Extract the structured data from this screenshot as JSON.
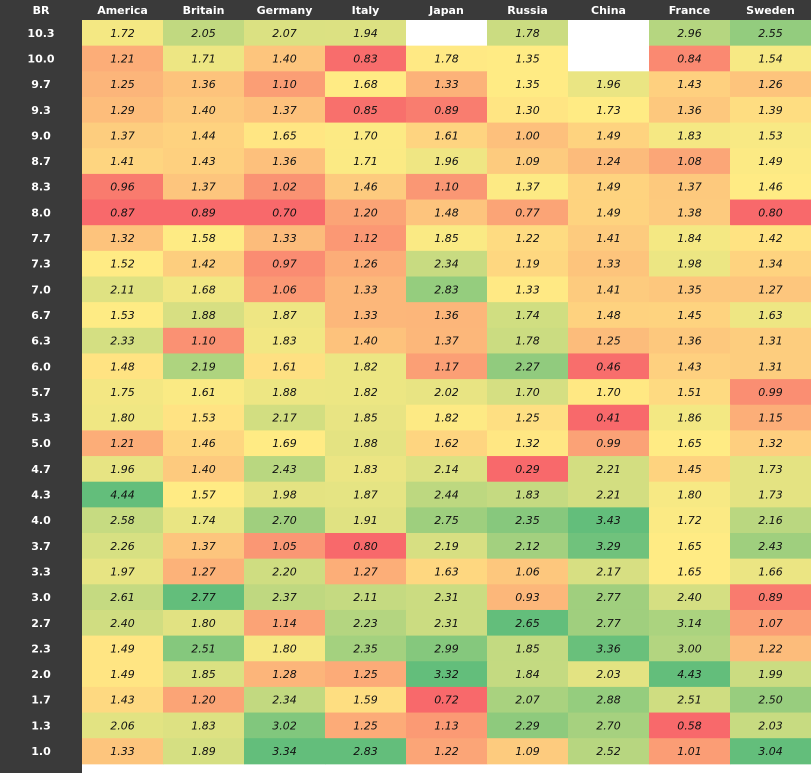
{
  "chart_data": {
    "type": "heatmap",
    "row_header": "BR",
    "columns": [
      "America",
      "Britain",
      "Germany",
      "Italy",
      "Japan",
      "Russia",
      "China",
      "France",
      "Sweden"
    ],
    "rows": [
      "10.3",
      "10.0",
      "9.7",
      "9.3",
      "9.0",
      "8.7",
      "8.3",
      "8.0",
      "7.7",
      "7.3",
      "7.0",
      "6.7",
      "6.3",
      "6.0",
      "5.7",
      "5.3",
      "5.0",
      "4.7",
      "4.3",
      "4.0",
      "3.7",
      "3.3",
      "3.0",
      "2.7",
      "2.3",
      "2.0",
      "1.7",
      "1.3",
      "1.0"
    ],
    "values": [
      [
        "1.72",
        "2.05",
        "2.07",
        "1.94",
        null,
        "1.78",
        null,
        "2.96",
        "2.55"
      ],
      [
        "1.21",
        "1.71",
        "1.40",
        "0.83",
        "1.78",
        "1.35",
        null,
        "0.84",
        "1.54"
      ],
      [
        "1.25",
        "1.36",
        "1.10",
        "1.68",
        "1.33",
        "1.35",
        "1.96",
        "1.43",
        "1.26"
      ],
      [
        "1.29",
        "1.40",
        "1.37",
        "0.85",
        "0.89",
        "1.30",
        "1.73",
        "1.36",
        "1.39"
      ],
      [
        "1.37",
        "1.44",
        "1.65",
        "1.70",
        "1.61",
        "1.00",
        "1.49",
        "1.83",
        "1.53"
      ],
      [
        "1.41",
        "1.43",
        "1.36",
        "1.71",
        "1.96",
        "1.09",
        "1.24",
        "1.08",
        "1.49"
      ],
      [
        "0.96",
        "1.37",
        "1.02",
        "1.46",
        "1.10",
        "1.37",
        "1.49",
        "1.37",
        "1.46"
      ],
      [
        "0.87",
        "0.89",
        "0.70",
        "1.20",
        "1.48",
        "0.77",
        "1.49",
        "1.38",
        "0.80"
      ],
      [
        "1.32",
        "1.58",
        "1.33",
        "1.12",
        "1.85",
        "1.22",
        "1.41",
        "1.84",
        "1.42"
      ],
      [
        "1.52",
        "1.42",
        "0.97",
        "1.26",
        "2.34",
        "1.19",
        "1.33",
        "1.98",
        "1.34"
      ],
      [
        "2.11",
        "1.68",
        "1.06",
        "1.33",
        "2.83",
        "1.33",
        "1.41",
        "1.35",
        "1.27"
      ],
      [
        "1.53",
        "1.88",
        "1.87",
        "1.33",
        "1.36",
        "1.74",
        "1.48",
        "1.45",
        "1.63"
      ],
      [
        "2.33",
        "1.10",
        "1.83",
        "1.40",
        "1.37",
        "1.78",
        "1.25",
        "1.36",
        "1.31"
      ],
      [
        "1.48",
        "2.19",
        "1.61",
        "1.82",
        "1.17",
        "2.27",
        "0.46",
        "1.43",
        "1.31"
      ],
      [
        "1.75",
        "1.61",
        "1.88",
        "1.82",
        "2.02",
        "1.70",
        "1.70",
        "1.51",
        "0.99"
      ],
      [
        "1.80",
        "1.53",
        "2.17",
        "1.85",
        "1.82",
        "1.25",
        "0.41",
        "1.86",
        "1.15"
      ],
      [
        "1.21",
        "1.46",
        "1.69",
        "1.88",
        "1.62",
        "1.32",
        "0.99",
        "1.65",
        "1.32"
      ],
      [
        "1.96",
        "1.40",
        "2.43",
        "1.83",
        "2.14",
        "0.29",
        "2.21",
        "1.45",
        "1.73"
      ],
      [
        "4.44",
        "1.57",
        "1.98",
        "1.87",
        "2.44",
        "1.83",
        "2.21",
        "1.80",
        "1.73"
      ],
      [
        "2.58",
        "1.74",
        "2.70",
        "1.91",
        "2.75",
        "2.35",
        "3.43",
        "1.72",
        "2.16"
      ],
      [
        "2.26",
        "1.37",
        "1.05",
        "0.80",
        "2.19",
        "2.12",
        "3.29",
        "1.65",
        "2.43"
      ],
      [
        "1.97",
        "1.27",
        "2.20",
        "1.27",
        "1.63",
        "1.06",
        "2.17",
        "1.65",
        "1.66"
      ],
      [
        "2.61",
        "2.77",
        "2.37",
        "2.11",
        "2.31",
        "0.93",
        "2.77",
        "2.40",
        "0.89"
      ],
      [
        "2.40",
        "1.80",
        "1.14",
        "2.23",
        "2.31",
        "2.65",
        "2.77",
        "3.14",
        "1.07"
      ],
      [
        "1.49",
        "2.51",
        "1.80",
        "2.35",
        "2.99",
        "1.85",
        "3.36",
        "3.00",
        "1.22"
      ],
      [
        "1.49",
        "1.85",
        "1.28",
        "1.25",
        "3.32",
        "1.84",
        "2.03",
        "4.43",
        "1.99"
      ],
      [
        "1.43",
        "1.20",
        "2.34",
        "1.59",
        "0.72",
        "2.07",
        "2.88",
        "2.51",
        "2.50"
      ],
      [
        "2.06",
        "1.83",
        "3.02",
        "1.25",
        "1.13",
        "2.29",
        "2.70",
        "0.58",
        "2.03"
      ],
      [
        "1.33",
        "1.89",
        "3.34",
        "2.83",
        "1.22",
        "1.09",
        "2.52",
        "1.01",
        "3.04"
      ]
    ],
    "color_scale": {
      "low": "#f8696b",
      "mid": "#ffeb84",
      "high": "#63be7b",
      "missing": "#ffffff",
      "header_background": "#3a3a3a",
      "header_text": "#ffffff"
    }
  }
}
